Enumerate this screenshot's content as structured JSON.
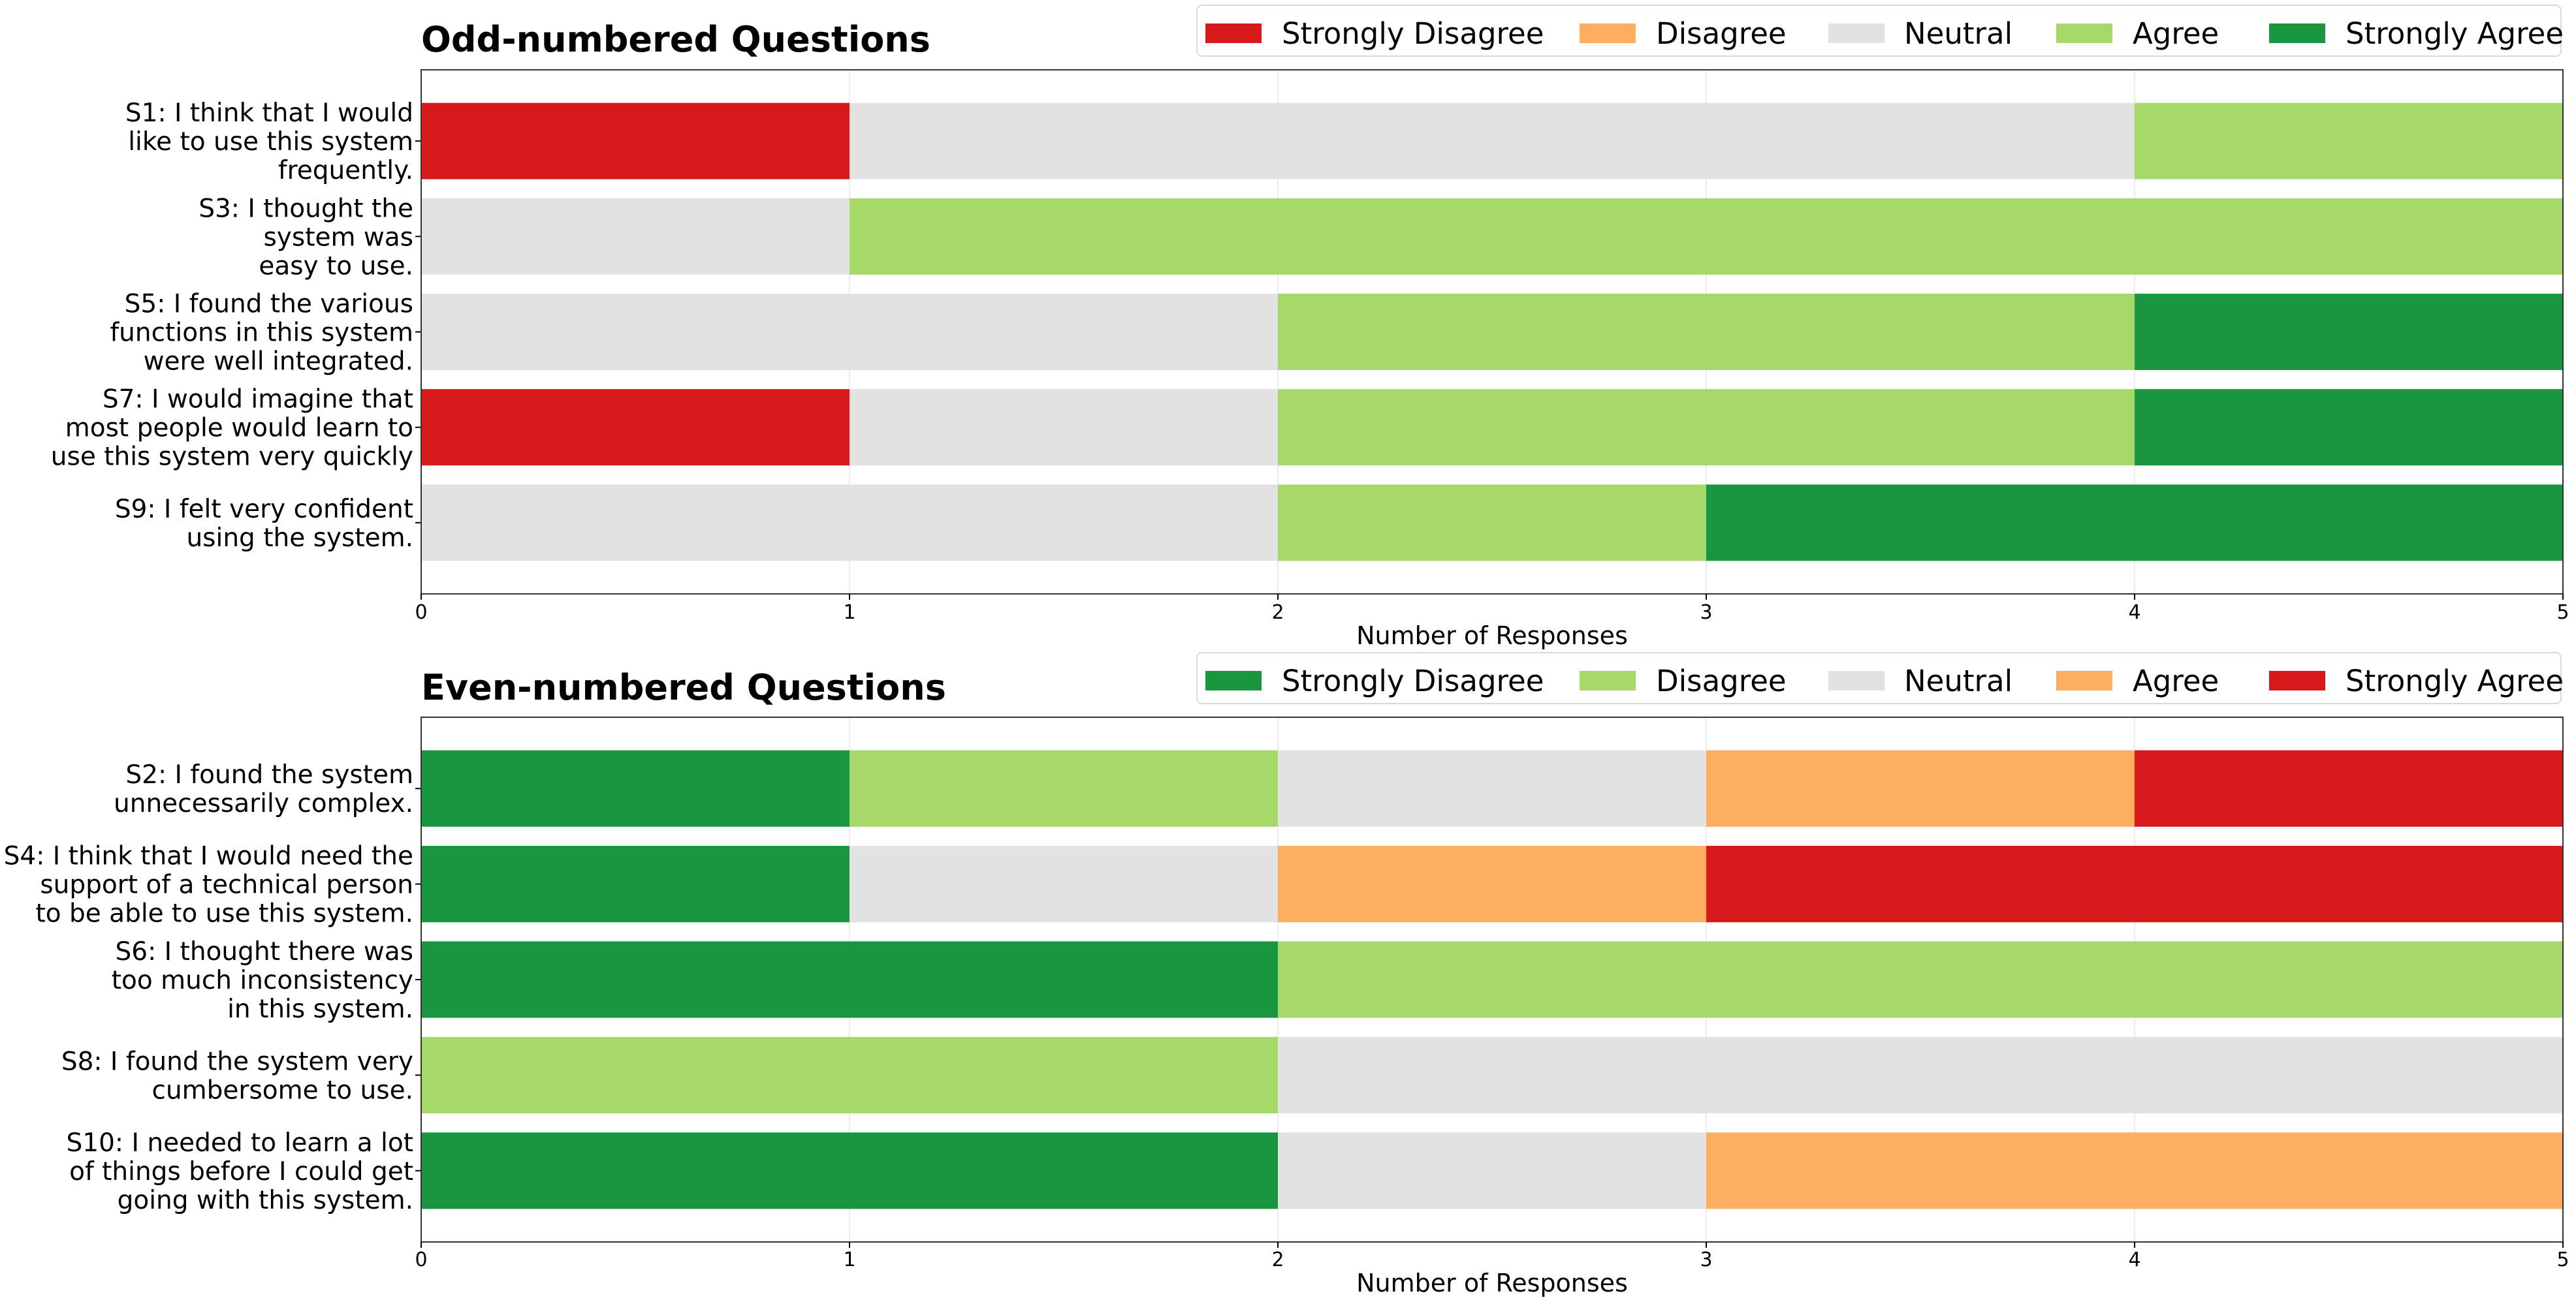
{
  "chart_data": [
    {
      "type": "bar",
      "orientation": "horizontal",
      "stacked": true,
      "title": "Odd-numbered Questions",
      "xlabel": "Number of Responses",
      "xlim": [
        0,
        5
      ],
      "xticks": [
        "0",
        "1",
        "2",
        "3",
        "4",
        "5"
      ],
      "grid": true,
      "legend_placement": "top-right",
      "categories": [
        [
          "S1: I think that I would",
          "like to use this system",
          "frequently."
        ],
        [
          "S3: I thought the",
          "system was",
          "easy to use."
        ],
        [
          "S5: I found the various",
          "functions in this system",
          "were well integrated."
        ],
        [
          "S7: I would imagine that",
          "most people would learn to",
          "use this system very quickly"
        ],
        [
          "S9: I felt very confident",
          "using the system."
        ]
      ],
      "series": [
        {
          "name": "Strongly Disagree",
          "color": "#d7191c",
          "values": [
            1,
            0,
            0,
            1,
            0
          ]
        },
        {
          "name": "Disagree",
          "color": "#fdae61",
          "values": [
            0,
            0,
            0,
            0,
            0
          ]
        },
        {
          "name": "Neutral",
          "color": "#e2e2e2",
          "values": [
            3,
            1,
            2,
            1,
            2
          ]
        },
        {
          "name": "Agree",
          "color": "#a6d96a",
          "values": [
            1,
            4,
            2,
            2,
            1
          ]
        },
        {
          "name": "Strongly Agree",
          "color": "#1a9641",
          "values": [
            0,
            0,
            1,
            1,
            2
          ]
        }
      ]
    },
    {
      "type": "bar",
      "orientation": "horizontal",
      "stacked": true,
      "title": "Even-numbered Questions",
      "xlabel": "Number of Responses",
      "xlim": [
        0,
        5
      ],
      "xticks": [
        "0",
        "1",
        "2",
        "3",
        "4",
        "5"
      ],
      "grid": true,
      "legend_placement": "top-right",
      "categories": [
        [
          "S2: I found the system",
          "unnecessarily complex."
        ],
        [
          "S4: I think that I would need the",
          "support of a technical person",
          "to be able to use this system."
        ],
        [
          "S6: I thought there was",
          "too much inconsistency",
          "in this system."
        ],
        [
          "S8: I found the system very",
          "cumbersome to use."
        ],
        [
          "S10: I needed to learn a lot",
          "of things before I could get",
          "going with this system."
        ]
      ],
      "series": [
        {
          "name": "Strongly Disagree",
          "color": "#1a9641",
          "values": [
            1,
            1,
            2,
            0,
            2
          ]
        },
        {
          "name": "Disagree",
          "color": "#a6d96a",
          "values": [
            1,
            0,
            3,
            2,
            0
          ]
        },
        {
          "name": "Neutral",
          "color": "#e2e2e2",
          "values": [
            1,
            1,
            0,
            3,
            1
          ]
        },
        {
          "name": "Agree",
          "color": "#fdae61",
          "values": [
            1,
            1,
            0,
            0,
            2
          ]
        },
        {
          "name": "Strongly Agree",
          "color": "#d7191c",
          "values": [
            1,
            2,
            0,
            0,
            0
          ]
        }
      ]
    }
  ]
}
